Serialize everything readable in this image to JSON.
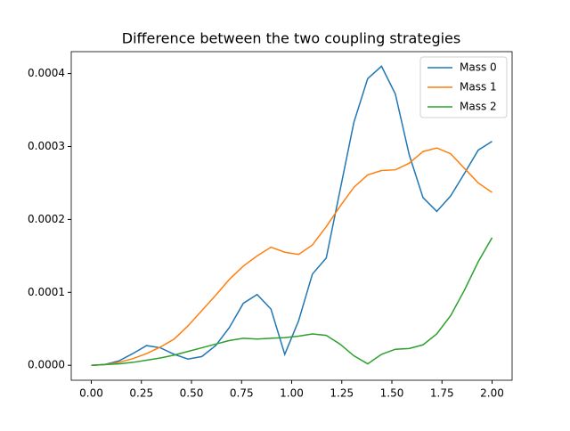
{
  "chart_data": {
    "type": "line",
    "title": "Difference between the two coupling strategies",
    "x": [
      0,
      0.069,
      0.1379,
      0.2069,
      0.2759,
      0.3448,
      0.4138,
      0.4828,
      0.5517,
      0.6207,
      0.6897,
      0.7586,
      0.8276,
      0.8966,
      0.9655,
      1.0345,
      1.1034,
      1.1724,
      1.2414,
      1.3103,
      1.3793,
      1.4483,
      1.5172,
      1.5862,
      1.6552,
      1.7241,
      1.7931,
      1.8621,
      1.931,
      2
    ],
    "series": [
      {
        "name": "Mass 0",
        "color": "#1f77b4",
        "values": [
          0,
          1.2e-06,
          6e-06,
          1.6e-05,
          2.7e-05,
          2.4e-05,
          1.5e-05,
          8.5e-06,
          1.2e-05,
          2.7e-05,
          5.2e-05,
          8.5e-05,
          9.7e-05,
          7.7e-05,
          1.5e-05,
          6.1e-05,
          0.000125,
          0.000147,
          0.00024,
          0.000333,
          0.000393,
          0.00041,
          0.000372,
          0.000289,
          0.00023,
          0.000211,
          0.000232,
          0.000263,
          0.000295,
          0.000307
        ]
      },
      {
        "name": "Mass 1",
        "color": "#ff7f0e",
        "values": [
          0,
          1e-06,
          4e-06,
          9e-06,
          1.6e-05,
          2.5e-05,
          3.6e-05,
          5.4e-05,
          7.5e-05,
          9.6e-05,
          0.000118,
          0.000136,
          0.00015,
          0.000162,
          0.000155,
          0.000152,
          0.000165,
          0.00019,
          0.000218,
          0.000244,
          0.000261,
          0.000267,
          0.000268,
          0.000277,
          0.000293,
          0.000298,
          0.00029,
          0.00027,
          0.00025,
          0.000237
        ]
      },
      {
        "name": "Mass 2",
        "color": "#2ca02c",
        "values": [
          0,
          1e-06,
          2e-06,
          4e-06,
          7e-06,
          1e-05,
          1.4e-05,
          1.9e-05,
          2.4e-05,
          2.9e-05,
          3.4e-05,
          3.7e-05,
          3.6e-05,
          3.7e-05,
          3.8e-05,
          4e-05,
          4.3e-05,
          4.1e-05,
          2.9e-05,
          1.3e-05,
          2e-06,
          1.5e-05,
          2.2e-05,
          2.3e-05,
          2.8e-05,
          4.3e-05,
          6.8e-05,
          0.000103,
          0.000142,
          0.000175
        ]
      }
    ],
    "xlim": [
      -0.1,
      2.1
    ],
    "xticks": [
      {
        "value": 0,
        "label": "0.00"
      },
      {
        "value": 0.25,
        "label": "0.25"
      },
      {
        "value": 0.5,
        "label": "0.50"
      },
      {
        "value": 0.75,
        "label": "0.75"
      },
      {
        "value": 1,
        "label": "1.00"
      },
      {
        "value": 1.25,
        "label": "1.25"
      },
      {
        "value": 1.5,
        "label": "1.50"
      },
      {
        "value": 1.75,
        "label": "1.75"
      },
      {
        "value": 2,
        "label": "2.00"
      }
    ],
    "ylim": [
      -2.05e-05,
      0.00043
    ],
    "yticks": [
      {
        "value": 0,
        "label": "0.0000"
      },
      {
        "value": 0.0001,
        "label": "0.0001"
      },
      {
        "value": 0.0002,
        "label": "0.0002"
      },
      {
        "value": 0.0003,
        "label": "0.0003"
      },
      {
        "value": 0.0004,
        "label": "0.0004"
      }
    ],
    "legend": "upper right"
  }
}
